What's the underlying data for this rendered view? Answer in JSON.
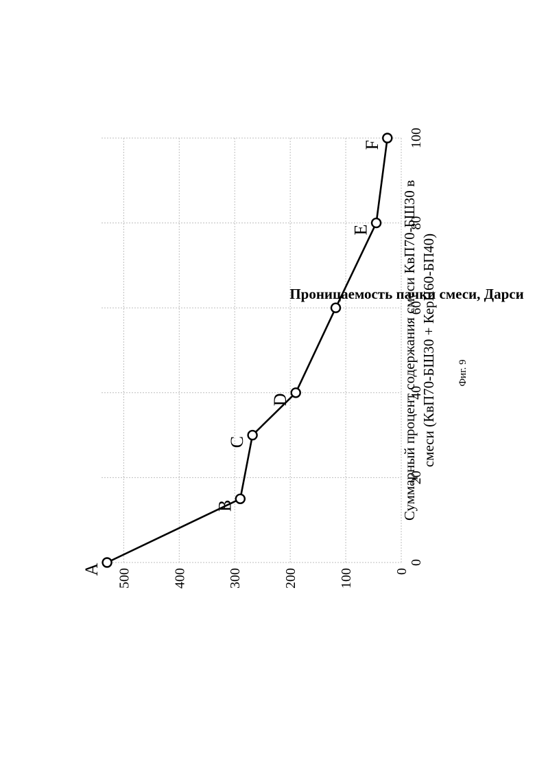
{
  "chart_data": {
    "type": "line",
    "title": "",
    "xlabel": "Суммарный процент содержания смеси КвП70-БШ30 в смеси (КвП70-БШ30 + КерП60-БП40)",
    "xlabel_lines": [
      "Суммарный процент содержания смеси КвП70-БШ30 в",
      "смеси (КвП70-БШ30 + КерП60-БП40)"
    ],
    "ylabel": "Проницаемость пачки смеси, Дарси",
    "xlim": [
      0,
      100
    ],
    "ylim": [
      0,
      540
    ],
    "x_ticks": [
      0,
      20,
      40,
      60,
      80,
      100
    ],
    "y_ticks": [
      0,
      100,
      200,
      300,
      400,
      500
    ],
    "grid": true,
    "rotation": "rotated 90 degrees counter-clockwise on the page",
    "points": [
      {
        "label": "A",
        "x": 0,
        "y": 530
      },
      {
        "label": "B",
        "x": 15,
        "y": 290
      },
      {
        "label": "C",
        "x": 30,
        "y": 268
      },
      {
        "label": "D",
        "x": 40,
        "y": 190
      },
      {
        "label": "",
        "x": 60,
        "y": 118
      },
      {
        "label": "E",
        "x": 80,
        "y": 45
      },
      {
        "label": "F",
        "x": 100,
        "y": 25
      }
    ]
  },
  "figure_caption": "Фиг. 9"
}
